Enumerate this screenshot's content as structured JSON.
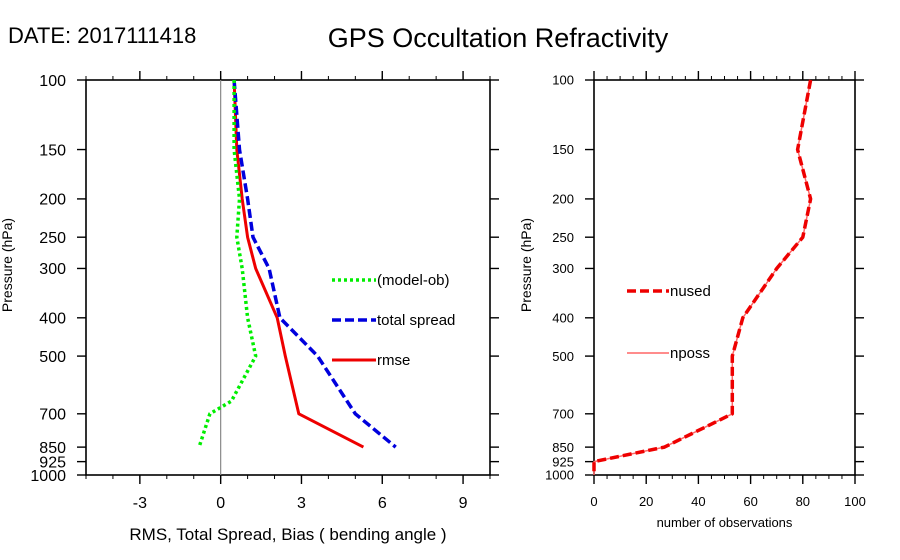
{
  "header": {
    "date_label": "DATE: 2017111418",
    "title": "GPS Occultation Refractivity"
  },
  "chart_data": [
    {
      "type": "line",
      "title": "",
      "xlabel": "RMS, Total Spread, Bias ( bending angle )",
      "ylabel": "Pressure (hPa)",
      "xlim": [
        -5,
        10
      ],
      "ylim": [
        1000,
        100
      ],
      "yscale": "log",
      "xticks": [
        -3,
        0,
        3,
        6,
        9
      ],
      "xtick_labels": [
        "-3",
        "0",
        "3",
        "6",
        "9"
      ],
      "yticks": [
        100,
        150,
        200,
        250,
        300,
        400,
        500,
        700,
        850,
        925,
        1000
      ],
      "ytick_labels": [
        "100",
        "150",
        "200",
        "250",
        "300",
        "400",
        "500",
        "700",
        "850",
        "925",
        "1000"
      ],
      "zero_line": 0,
      "legend_placement": "center-right",
      "series": [
        {
          "name": "(model-ob)",
          "color": "#00ee00",
          "style": "dotted",
          "points": [
            [
              0.5,
              100
            ],
            [
              0.5,
              150
            ],
            [
              0.7,
              200
            ],
            [
              0.6,
              250
            ],
            [
              0.8,
              300
            ],
            [
              1.0,
              400
            ],
            [
              1.3,
              500
            ],
            [
              0.4,
              650
            ],
            [
              -0.4,
              700
            ],
            [
              -0.8,
              850
            ]
          ]
        },
        {
          "name": "total spread",
          "color": "#0000dd",
          "style": "dashed",
          "points": [
            [
              0.5,
              100
            ],
            [
              0.7,
              150
            ],
            [
              1.0,
              200
            ],
            [
              1.2,
              250
            ],
            [
              1.8,
              300
            ],
            [
              2.2,
              400
            ],
            [
              3.6,
              500
            ],
            [
              5.0,
              700
            ],
            [
              6.5,
              850
            ]
          ]
        },
        {
          "name": "rmse",
          "color": "#ee0000",
          "style": "solid",
          "points": [
            [
              0.5,
              100
            ],
            [
              0.6,
              150
            ],
            [
              0.8,
              200
            ],
            [
              1.0,
              250
            ],
            [
              1.3,
              300
            ],
            [
              2.1,
              400
            ],
            [
              2.4,
              500
            ],
            [
              2.9,
              700
            ],
            [
              5.3,
              850
            ]
          ]
        }
      ]
    },
    {
      "type": "line",
      "title": "",
      "xlabel": "number of observations",
      "ylabel": "Pressure (hPa)",
      "xlim": [
        0,
        100
      ],
      "ylim": [
        1000,
        100
      ],
      "yscale": "log",
      "xticks": [
        0,
        20,
        40,
        60,
        80,
        100
      ],
      "xtick_labels": [
        "0",
        "20",
        "40",
        "60",
        "80",
        "100"
      ],
      "yticks": [
        100,
        150,
        200,
        250,
        300,
        400,
        500,
        700,
        850,
        925,
        1000
      ],
      "ytick_labels": [
        "100",
        "150",
        "200",
        "250",
        "300",
        "400",
        "500",
        "700",
        "850",
        "925",
        "1000"
      ],
      "legend_placement": "center-left",
      "series": [
        {
          "name": "nused",
          "color": "#ee0000",
          "style": "dashed",
          "points": [
            [
              83,
              100
            ],
            [
              78,
              150
            ],
            [
              83,
              200
            ],
            [
              80,
              250
            ],
            [
              70,
              300
            ],
            [
              57,
              400
            ],
            [
              53,
              500
            ],
            [
              53,
              700
            ],
            [
              27,
              850
            ],
            [
              0,
              925
            ],
            [
              0,
              1000
            ]
          ]
        },
        {
          "name": "nposs",
          "color": "#ff6666",
          "style": "solid",
          "points": [
            [
              83,
              100
            ],
            [
              78,
              150
            ],
            [
              83,
              200
            ],
            [
              80,
              250
            ],
            [
              70,
              300
            ],
            [
              57,
              400
            ],
            [
              53,
              500
            ],
            [
              53,
              700
            ],
            [
              27,
              850
            ],
            [
              0,
              925
            ],
            [
              0,
              1000
            ]
          ]
        }
      ]
    }
  ]
}
